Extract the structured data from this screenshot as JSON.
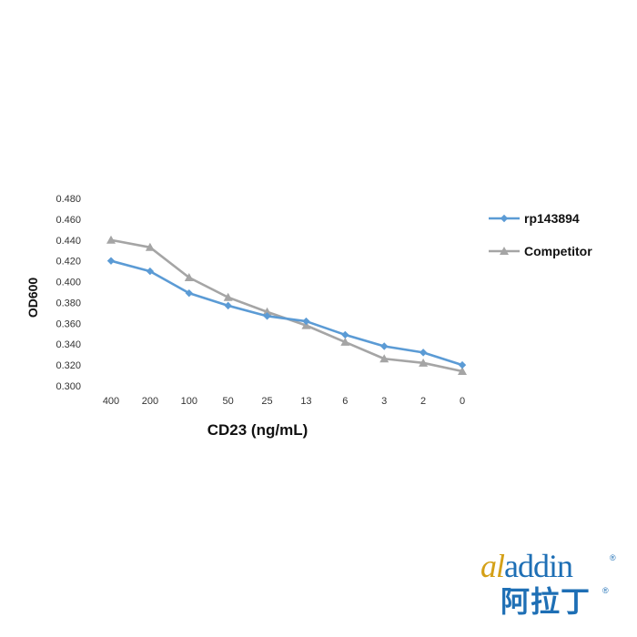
{
  "chart_data": {
    "type": "line",
    "categories": [
      "400",
      "200",
      "100",
      "50",
      "25",
      "13",
      "6",
      "3",
      "2",
      "0"
    ],
    "series": [
      {
        "name": "rp143894",
        "marker": "diamond",
        "color": "#5b9bd5",
        "values": [
          0.42,
          0.41,
          0.389,
          0.377,
          0.367,
          0.362,
          0.349,
          0.338,
          0.332,
          0.32
        ]
      },
      {
        "name": "Competitor",
        "marker": "triangle",
        "color": "#a5a5a5",
        "values": [
          0.44,
          0.433,
          0.404,
          0.385,
          0.371,
          0.358,
          0.342,
          0.326,
          0.322,
          0.314
        ]
      }
    ],
    "xlabel": "CD23 (ng/mL)",
    "ylabel": "OD600",
    "ylim": [
      0.3,
      0.48
    ],
    "yticks": [
      "0.300",
      "0.320",
      "0.340",
      "0.360",
      "0.380",
      "0.400",
      "0.420",
      "0.440",
      "0.460",
      "0.480"
    ],
    "grid": false,
    "legend_position": "right"
  },
  "logo": {
    "word_part1": "al",
    "word_part2": "addin",
    "chinese": "阿拉丁",
    "registered": "®",
    "colors": {
      "gold": "#d4a017",
      "blue": "#1e6fb5"
    }
  }
}
